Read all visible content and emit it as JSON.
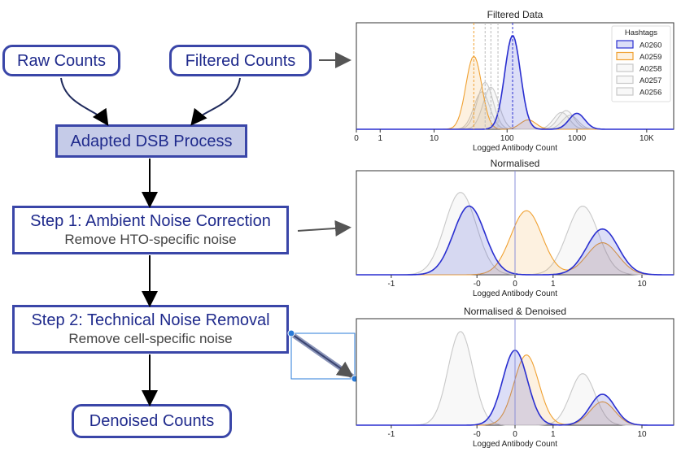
{
  "flow": {
    "raw_counts": "Raw Counts",
    "filtered_counts": "Filtered Counts",
    "process": "Adapted DSB Process",
    "step1_title": "Step 1: Ambient Noise Correction",
    "step1_sub": "Remove HTO-specific noise",
    "step2_title": "Step 2: Technical Noise Removal",
    "step2_sub": "Remove cell-specific noise",
    "denoised": "Denoised Counts"
  },
  "colors": {
    "node_border": "#3a46a8",
    "node_text": "#1f2a8c",
    "process_fill": "#c5cbe8",
    "A0260": "#2a2fd0",
    "A0259": "#f0a030",
    "others": "#c8c8c8"
  },
  "chart_data": [
    {
      "type": "area",
      "title": "Filtered Data",
      "xlabel": "Logged Antibody Count",
      "ylabel": "",
      "xticks": [
        "0",
        "1",
        "10",
        "100",
        "1000",
        "10K"
      ],
      "legend_title": "Hashtags",
      "legend_position": "top-right",
      "series": [
        {
          "name": "A0260",
          "peaks": [
            {
              "x": 120,
              "height": 1.0
            },
            {
              "x": 1000,
              "height": 0.17
            }
          ]
        },
        {
          "name": "A0259",
          "peaks": [
            {
              "x": 35,
              "height": 0.78
            },
            {
              "x": 200,
              "height": 0.1
            }
          ]
        },
        {
          "name": "A0258",
          "peaks": [
            {
              "x": 50,
              "height": 0.5
            },
            {
              "x": 700,
              "height": 0.2
            }
          ]
        },
        {
          "name": "A0257",
          "peaks": [
            {
              "x": 60,
              "height": 0.45
            },
            {
              "x": 800,
              "height": 0.15
            }
          ]
        },
        {
          "name": "A0256",
          "peaks": [
            {
              "x": 45,
              "height": 0.4
            },
            {
              "x": 600,
              "height": 0.18
            }
          ]
        }
      ]
    },
    {
      "type": "area",
      "title": "Normalised",
      "xlabel": "Logged Antibody Count",
      "ylabel": "",
      "xticks": [
        "-1",
        "-0",
        "0",
        "1",
        "10"
      ],
      "series": [
        {
          "name": "A0260",
          "peaks": [
            {
              "x": -0.1,
              "height": 0.75
            },
            {
              "x": 6,
              "height": 0.5
            }
          ]
        },
        {
          "name": "A0259",
          "peaks": [
            {
              "x": 0.3,
              "height": 0.7
            },
            {
              "x": 6,
              "height": 0.35
            }
          ]
        },
        {
          "name": "A0258",
          "peaks": [
            {
              "x": -0.2,
              "height": 0.9
            },
            {
              "x": 4,
              "height": 0.75
            }
          ]
        }
      ]
    },
    {
      "type": "area",
      "title": "Normalised & Denoised",
      "xlabel": "Logged Antibody Count",
      "ylabel": "",
      "xticks": [
        "-1",
        "-0",
        "0",
        "1",
        "10"
      ],
      "series": [
        {
          "name": "A0260",
          "peaks": [
            {
              "x": 0,
              "height": 0.8
            },
            {
              "x": 6,
              "height": 0.33
            }
          ]
        },
        {
          "name": "A0259",
          "peaks": [
            {
              "x": 0.3,
              "height": 0.75
            },
            {
              "x": 6,
              "height": 0.25
            }
          ]
        },
        {
          "name": "A0258",
          "peaks": [
            {
              "x": -0.2,
              "height": 1.0
            },
            {
              "x": 4,
              "height": 0.55
            }
          ]
        }
      ]
    }
  ]
}
